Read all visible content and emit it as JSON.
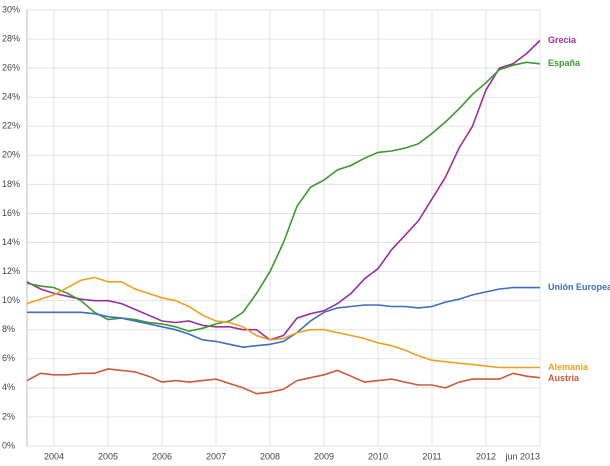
{
  "chart_data": {
    "type": "line",
    "x": [
      2004,
      2004.25,
      2004.5,
      2004.75,
      2005,
      2005.25,
      2005.5,
      2005.75,
      2006,
      2006.25,
      2006.5,
      2006.75,
      2007,
      2007.25,
      2007.5,
      2007.75,
      2008,
      2008.25,
      2008.5,
      2008.75,
      2009,
      2009.25,
      2009.5,
      2009.75,
      2010,
      2010.25,
      2010.5,
      2010.75,
      2011,
      2011.25,
      2011.5,
      2011.75,
      2012,
      2012.25,
      2012.5,
      2012.75,
      2013,
      2013.25,
      2013.5
    ],
    "series": [
      {
        "name": "Grecia",
        "color": "#9b2f9b",
        "values": [
          11.3,
          10.8,
          10.5,
          10.3,
          10.1,
          10.0,
          10.0,
          9.8,
          9.4,
          9.0,
          8.6,
          8.5,
          8.6,
          8.3,
          8.2,
          8.2,
          8.0,
          8.0,
          7.3,
          7.6,
          8.8,
          9.1,
          9.3,
          9.8,
          10.5,
          11.5,
          12.2,
          13.5,
          14.5,
          15.5,
          17.0,
          18.5,
          20.5,
          22.0,
          24.5,
          26.0,
          26.3,
          27.0,
          27.9
        ]
      },
      {
        "name": "España",
        "color": "#3a9a2e",
        "values": [
          11.2,
          11.0,
          10.9,
          10.5,
          10.0,
          9.2,
          8.7,
          8.8,
          8.7,
          8.5,
          8.4,
          8.2,
          7.9,
          8.1,
          8.4,
          8.6,
          9.2,
          10.5,
          12.0,
          14.0,
          16.5,
          17.8,
          18.3,
          19.0,
          19.3,
          19.8,
          20.2,
          20.3,
          20.5,
          20.8,
          21.5,
          22.3,
          23.2,
          24.2,
          25.0,
          25.9,
          26.2,
          26.4,
          26.3
        ]
      },
      {
        "name": "Unión Europea",
        "color": "#3c6fbf",
        "values": [
          9.2,
          9.2,
          9.2,
          9.2,
          9.2,
          9.1,
          8.9,
          8.8,
          8.6,
          8.4,
          8.2,
          8.0,
          7.7,
          7.3,
          7.2,
          7.0,
          6.8,
          6.9,
          7.0,
          7.2,
          7.8,
          8.6,
          9.2,
          9.5,
          9.6,
          9.7,
          9.7,
          9.6,
          9.6,
          9.5,
          9.6,
          9.9,
          10.1,
          10.4,
          10.6,
          10.8,
          10.9,
          10.9,
          10.9
        ]
      },
      {
        "name": "Alemania",
        "color": "#f0a020",
        "values": [
          9.8,
          10.1,
          10.4,
          10.9,
          11.4,
          11.6,
          11.3,
          11.3,
          10.8,
          10.5,
          10.2,
          10.0,
          9.6,
          9.0,
          8.6,
          8.5,
          8.2,
          7.6,
          7.3,
          7.4,
          7.8,
          8.0,
          8.0,
          7.8,
          7.6,
          7.4,
          7.1,
          6.9,
          6.6,
          6.2,
          5.9,
          5.8,
          5.7,
          5.6,
          5.5,
          5.4,
          5.4,
          5.4,
          5.4
        ]
      },
      {
        "name": "Austria",
        "color": "#cc5a3a",
        "values": [
          4.5,
          5.0,
          4.9,
          4.9,
          5.0,
          5.0,
          5.3,
          5.2,
          5.1,
          4.8,
          4.4,
          4.5,
          4.4,
          4.5,
          4.6,
          4.3,
          4.0,
          3.6,
          3.7,
          3.9,
          4.5,
          4.7,
          4.9,
          5.2,
          4.8,
          4.4,
          4.5,
          4.6,
          4.4,
          4.2,
          4.2,
          4.0,
          4.4,
          4.6,
          4.6,
          4.6,
          5.0,
          4.8,
          4.7
        ]
      }
    ],
    "xlim": [
      2004,
      2013.5
    ],
    "xticks": [
      {
        "value": 2004.5,
        "label": "2004"
      },
      {
        "value": 2005.5,
        "label": "2005"
      },
      {
        "value": 2006.5,
        "label": "2006"
      },
      {
        "value": 2007.5,
        "label": "2007"
      },
      {
        "value": 2008.5,
        "label": "2008"
      },
      {
        "value": 2009.5,
        "label": "2009"
      },
      {
        "value": 2010.5,
        "label": "2010"
      },
      {
        "value": 2011.5,
        "label": "2011"
      },
      {
        "value": 2012.5,
        "label": "2012"
      },
      {
        "value": 2013.5,
        "label": "jun 2013"
      }
    ],
    "ylim": [
      0,
      30
    ],
    "yticks": [
      {
        "value": 0,
        "label": "0%"
      },
      {
        "value": 2,
        "label": "2%"
      },
      {
        "value": 4,
        "label": "4%"
      },
      {
        "value": 6,
        "label": "6%"
      },
      {
        "value": 8,
        "label": "8%"
      },
      {
        "value": 10,
        "label": "10%"
      },
      {
        "value": 12,
        "label": "12%"
      },
      {
        "value": 14,
        "label": "14%"
      },
      {
        "value": 16,
        "label": "16%"
      },
      {
        "value": 18,
        "label": "18%"
      },
      {
        "value": 20,
        "label": "20%"
      },
      {
        "value": 22,
        "label": "22%"
      },
      {
        "value": 24,
        "label": "24%"
      },
      {
        "value": 26,
        "label": "26%"
      },
      {
        "value": 28,
        "label": "28%"
      },
      {
        "value": 30,
        "label": "30%"
      }
    ],
    "grid": true
  }
}
